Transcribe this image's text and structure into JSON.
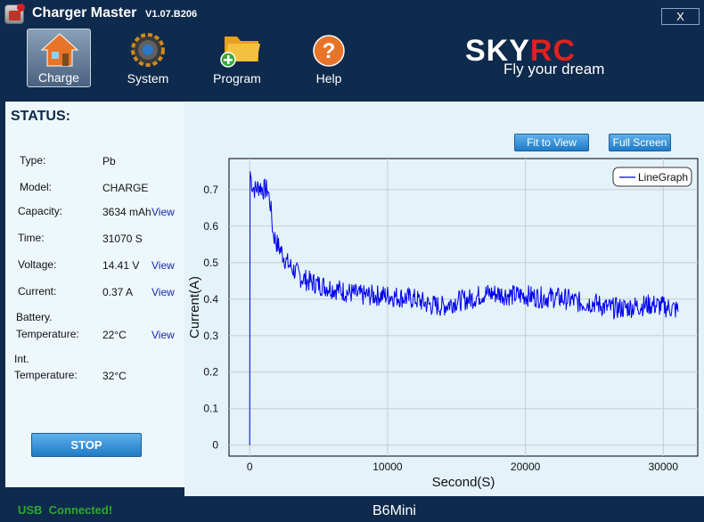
{
  "window": {
    "title": "Charger Master",
    "version": "V1.07.B206",
    "close_label": "X"
  },
  "toolbar": {
    "items": [
      {
        "label": "Charge",
        "icon": "home-icon",
        "active": true
      },
      {
        "label": "System",
        "icon": "gear-icon",
        "active": false
      },
      {
        "label": "Program",
        "icon": "folder-add-icon",
        "active": false
      },
      {
        "label": "Help",
        "icon": "help-icon",
        "active": false
      }
    ]
  },
  "brand": {
    "logo_part1": "SKY",
    "logo_part2": "RC",
    "tagline": "Fly your dream"
  },
  "status": {
    "title": "STATUS:",
    "type_label": "Type:",
    "type_value": "Pb",
    "model_label": "Model:",
    "model_value": "CHARGE",
    "capacity_label": "Capacity:",
    "capacity_value": "3634 mAh",
    "time_label": "Time:",
    "time_value": "31070 S",
    "voltage_label": "Voltage:",
    "voltage_value": "14.41 V",
    "current_label": "Current:",
    "current_value": "0.37 A",
    "battery_label_1": "Battery.",
    "battery_label_2": "Temperature:",
    "battery_value": "22°C",
    "int_label_1": "Int.",
    "int_label_2": "Temperature:",
    "int_value": "32°C",
    "view_label": "View",
    "stop_label": "STOP"
  },
  "graph": {
    "fit_label": "Fit to View",
    "fullscreen_label": "Full Screen"
  },
  "chart_data": {
    "type": "line",
    "xlabel": "Second(S)",
    "ylabel": "Current(A)",
    "xlim": [
      -1500,
      32500
    ],
    "ylim": [
      -0.03,
      0.785
    ],
    "xticks": [
      0,
      10000,
      20000,
      30000
    ],
    "yticks": [
      0,
      0.1,
      0.2,
      0.3,
      0.4,
      0.5,
      0.6,
      0.7
    ],
    "grid": true,
    "legend": "top-right",
    "line_color": "#0000ee",
    "series": [
      {
        "name": "LineGraph",
        "x": [
          0,
          30,
          100,
          200,
          400,
          700,
          1000,
          1300,
          1500,
          1700,
          2000,
          2300,
          2700,
          3200,
          3700,
          4200,
          5000,
          6000,
          7000,
          8000,
          9000,
          10000,
          11000,
          12000,
          13000,
          14000,
          15000,
          16000,
          17000,
          18000,
          19000,
          20000,
          21000,
          22000,
          23000,
          24000,
          25000,
          26000,
          27000,
          28000,
          29000,
          30000,
          30600,
          31070
        ],
        "y": [
          0.0,
          0.75,
          0.73,
          0.71,
          0.7,
          0.71,
          0.7,
          0.7,
          0.66,
          0.58,
          0.55,
          0.53,
          0.5,
          0.48,
          0.46,
          0.45,
          0.44,
          0.43,
          0.42,
          0.41,
          0.41,
          0.41,
          0.405,
          0.4,
          0.385,
          0.38,
          0.395,
          0.4,
          0.415,
          0.415,
          0.41,
          0.41,
          0.405,
          0.405,
          0.4,
          0.39,
          0.39,
          0.375,
          0.375,
          0.38,
          0.385,
          0.38,
          0.375,
          0.37
        ]
      }
    ]
  }
}
